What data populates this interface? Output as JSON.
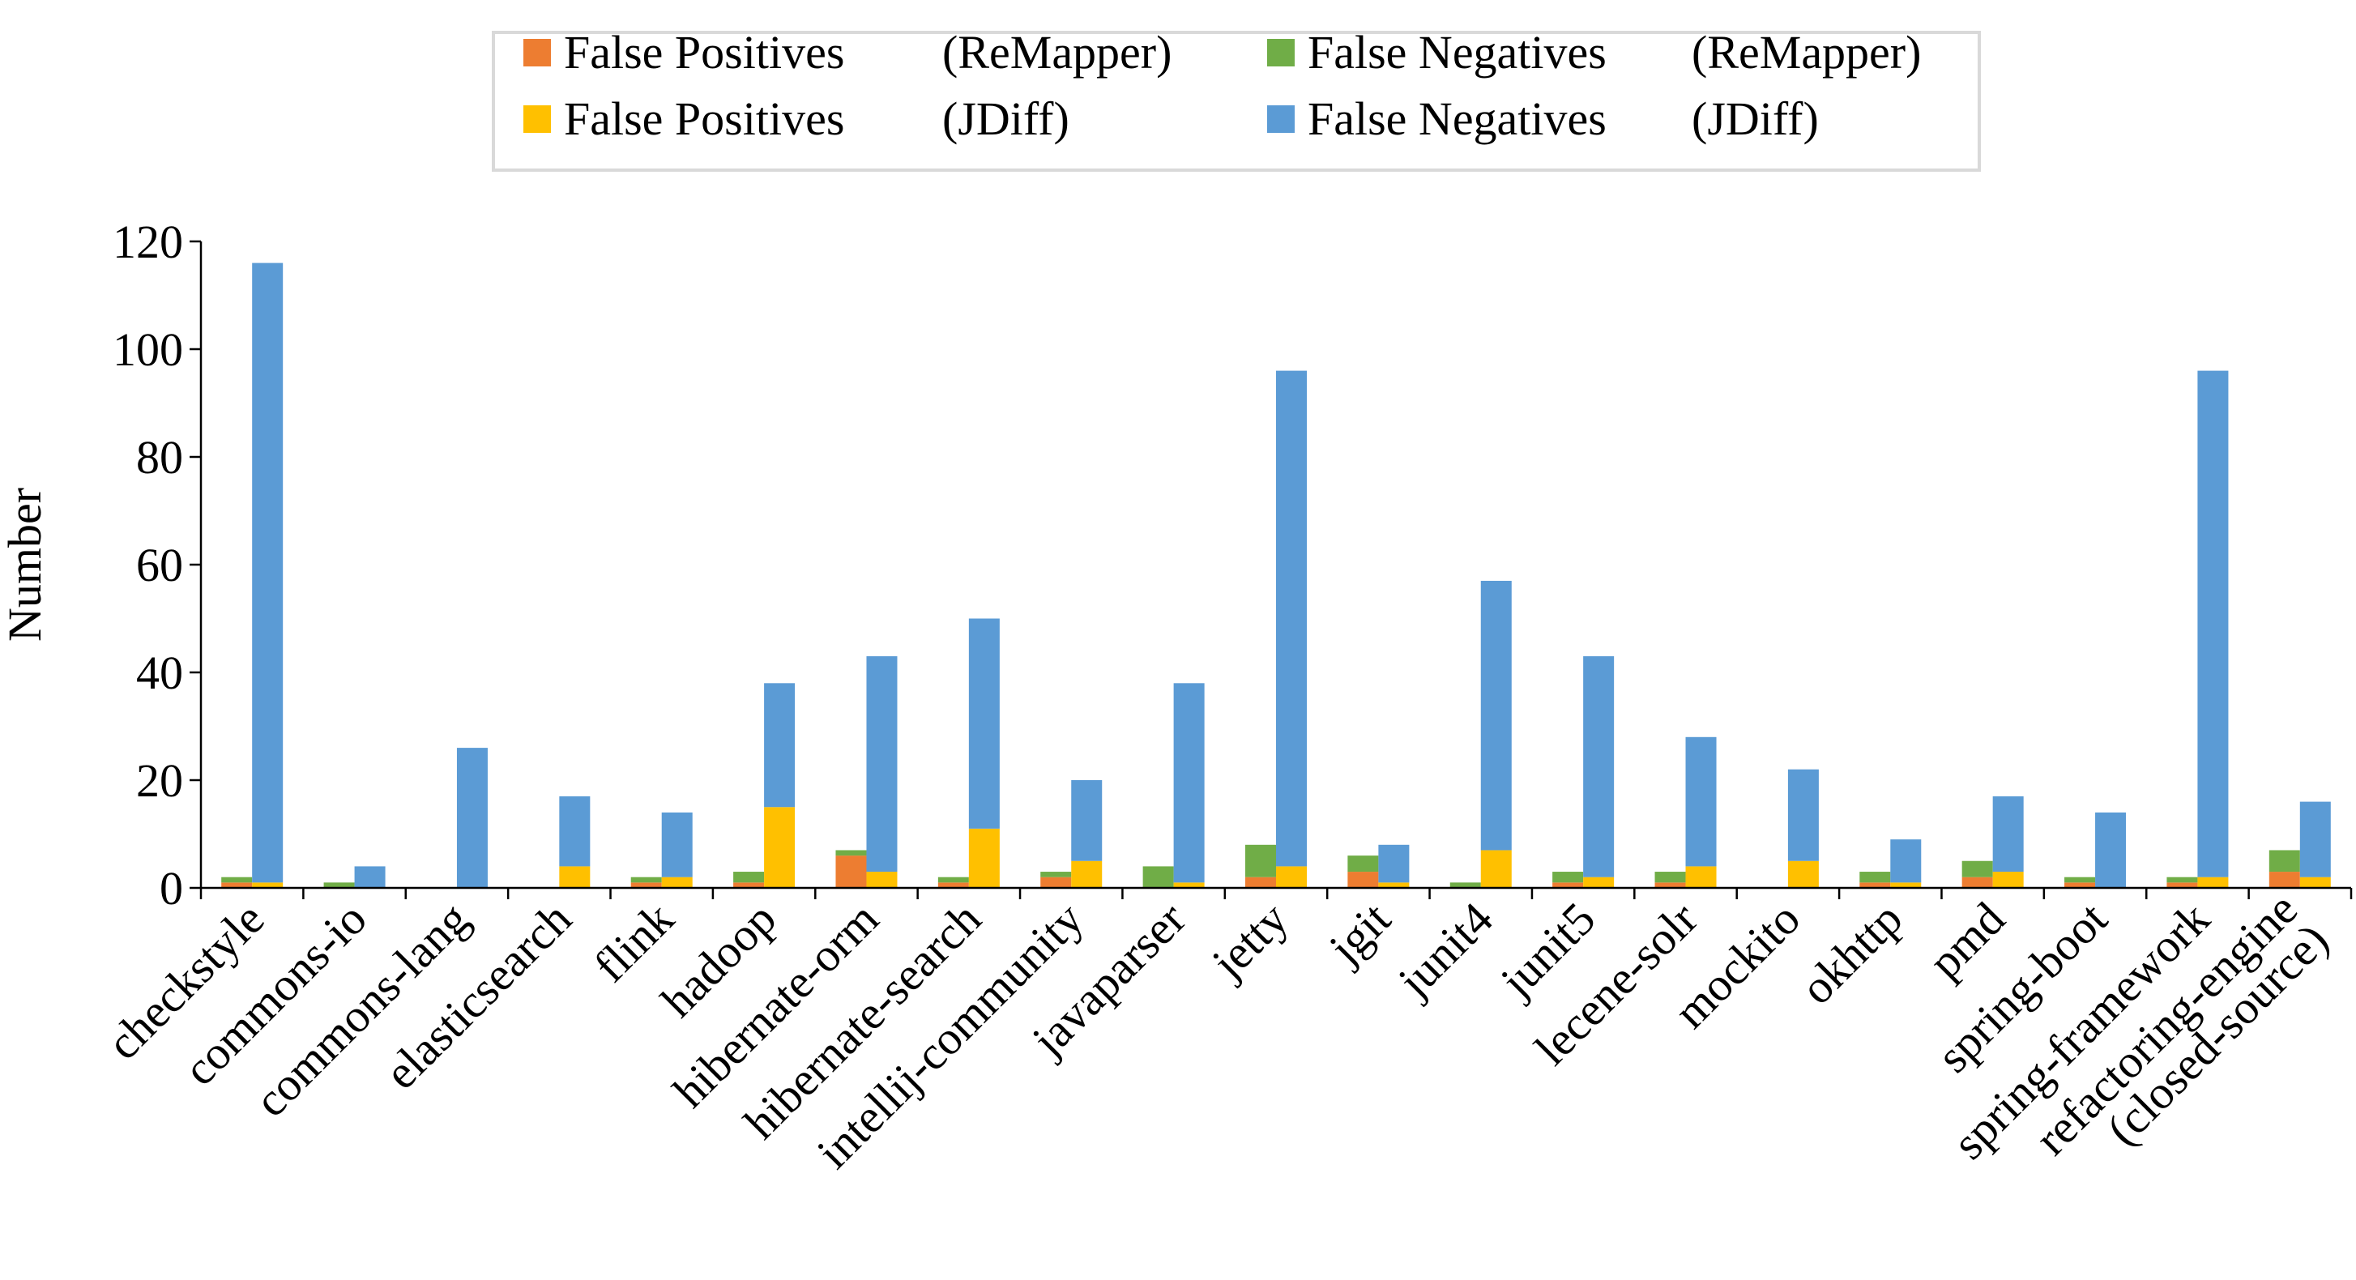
{
  "chart_data": {
    "type": "bar",
    "stacking": "stacked",
    "ylabel": "Number",
    "xlabel": "",
    "ylim": [
      0,
      120
    ],
    "yticks": [
      0,
      20,
      40,
      60,
      80,
      100,
      120
    ],
    "grid": false,
    "legend_position": "top-center",
    "categories": [
      "checkstyle",
      "commons-io",
      "commons-lang",
      "elasticsearch",
      "flink",
      "hadoop",
      "hibernate-orm",
      "hibernate-search",
      "intellij-community",
      "javaparser",
      "jetty",
      "jgit",
      "junit4",
      "junit5",
      "lecene-solr",
      "mockito",
      "okhttp",
      "pmd",
      "spring-boot",
      "spring-framework",
      [
        "refactoring-engine",
        "(closed-source)"
      ]
    ],
    "groups": [
      {
        "name": "ReMapper",
        "series": [
          {
            "name": "False Positives",
            "tool": "(ReMapper)",
            "color": "#ED7D31",
            "values": [
              1,
              0,
              0,
              0,
              1,
              1,
              6,
              1,
              2,
              0,
              2,
              3,
              0,
              1,
              1,
              0,
              1,
              2,
              1,
              1,
              3
            ]
          },
          {
            "name": "False Negatives",
            "tool": "(ReMapper)",
            "color": "#70AD47",
            "values": [
              1,
              1,
              0,
              0,
              1,
              2,
              1,
              1,
              1,
              4,
              6,
              3,
              1,
              2,
              2,
              0,
              2,
              3,
              1,
              1,
              4
            ]
          }
        ]
      },
      {
        "name": "JDiff",
        "series": [
          {
            "name": "False Positives",
            "tool": "(JDiff)",
            "color": "#FFC000",
            "values": [
              1,
              0,
              0,
              4,
              2,
              15,
              3,
              11,
              5,
              1,
              4,
              1,
              7,
              2,
              4,
              5,
              1,
              3,
              0,
              2,
              2
            ]
          },
          {
            "name": "False Negatives",
            "tool": "(JDiff)",
            "color": "#5B9BD5",
            "values": [
              115,
              4,
              26,
              13,
              12,
              23,
              40,
              39,
              15,
              37,
              92,
              7,
              50,
              41,
              24,
              17,
              8,
              14,
              14,
              94,
              14
            ]
          }
        ]
      }
    ]
  }
}
